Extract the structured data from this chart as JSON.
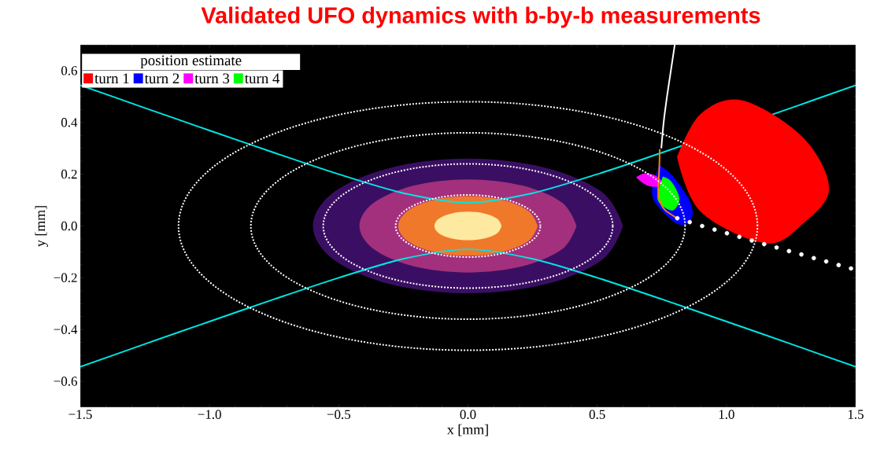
{
  "chart_data": {
    "type": "line",
    "title": "Validated UFO dynamics with b-by-b measurements",
    "xlabel": "x [mm]",
    "ylabel": "y [mm]",
    "legend_title": "position estimate",
    "legend": "top left",
    "grid": false,
    "xlim": [
      -1.5,
      1.5
    ],
    "ylim": [
      -0.7,
      0.7
    ],
    "xticks": [
      {
        "value": -1.5,
        "label": "−1.5"
      },
      {
        "value": -1.0,
        "label": "−1.0"
      },
      {
        "value": -0.5,
        "label": "−0.5"
      },
      {
        "value": 0.0,
        "label": "0.0"
      },
      {
        "value": 0.5,
        "label": "0.5"
      },
      {
        "value": 1.0,
        "label": "1.0"
      },
      {
        "value": 1.5,
        "label": "1.5"
      }
    ],
    "yticks": [
      {
        "value": -0.6,
        "label": "−0.6"
      },
      {
        "value": -0.4,
        "label": "−0.4"
      },
      {
        "value": -0.2,
        "label": "−0.2"
      },
      {
        "value": 0.0,
        "label": "0.0"
      },
      {
        "value": 0.2,
        "label": "0.2"
      },
      {
        "value": 0.4,
        "label": "0.4"
      },
      {
        "value": 0.6,
        "label": "0.6"
      }
    ],
    "series": [
      {
        "type": "area",
        "color": "#3a0f63",
        "x": [
          0.6,
          0.52,
          0.3,
          0,
          -0.3,
          -0.52,
          -0.6,
          -0.52,
          -0.3,
          0,
          0.3,
          0.52,
          0.6
        ],
        "values": [
          0,
          0.13,
          0.225,
          0.26,
          0.225,
          0.13,
          0,
          -0.13,
          -0.225,
          -0.26,
          -0.225,
          -0.13,
          0
        ]
      },
      {
        "type": "area",
        "color": "#a3307c",
        "x": [
          0.42,
          0.364,
          0.21,
          0,
          -0.21,
          -0.364,
          -0.42,
          -0.364,
          -0.21,
          0,
          0.21,
          0.364,
          0.42
        ],
        "values": [
          0,
          0.09,
          0.156,
          0.18,
          0.156,
          0.09,
          0,
          -0.09,
          -0.156,
          -0.18,
          -0.156,
          -0.09,
          0
        ]
      },
      {
        "type": "area",
        "color": "#f0782a",
        "x": [
          0.27,
          0.234,
          0.135,
          0,
          -0.135,
          -0.234,
          -0.27,
          -0.234,
          -0.135,
          0,
          0.135,
          0.234,
          0.27
        ],
        "values": [
          0,
          0.058,
          0.1,
          0.115,
          0.1,
          0.058,
          0,
          -0.058,
          -0.1,
          -0.115,
          -0.1,
          -0.058,
          0
        ]
      },
      {
        "type": "area",
        "color": "#fde9a0",
        "x": [
          0.13,
          0.113,
          0.065,
          0,
          -0.065,
          -0.113,
          -0.13,
          -0.113,
          -0.065,
          0,
          0.065,
          0.113,
          0.13
        ],
        "values": [
          0,
          0.028,
          0.048,
          0.055,
          0.048,
          0.028,
          0,
          -0.028,
          -0.048,
          -0.055,
          -0.048,
          -0.028,
          0
        ]
      },
      {
        "line_style": "solid",
        "color": "#00e5e5",
        "x": [
          -1.5,
          -1.25,
          -1,
          -0.75,
          -0.5,
          -0.25,
          0,
          0.25,
          0.5,
          0.75,
          1,
          1.25,
          1.5
        ],
        "values": [
          0.544,
          0.456,
          0.369,
          0.283,
          0.2,
          0.127,
          0.09,
          0.127,
          0.2,
          0.283,
          null,
          0.456,
          0.544
        ]
      },
      {
        "line_style": "solid",
        "color": "#00e5e5",
        "x": [
          -1.5,
          -1.25,
          -1,
          -0.75,
          -0.5,
          -0.25,
          0,
          0.25,
          0.5,
          0.75,
          1,
          1.25,
          1.5
        ],
        "values": [
          -0.544,
          -0.456,
          -0.369,
          -0.283,
          -0.2,
          -0.127,
          -0.09,
          -0.127,
          -0.2,
          -0.283,
          -0.369,
          -0.456,
          -0.544
        ]
      },
      {
        "type": "area",
        "name": "turn 1",
        "color": "#ff0000",
        "x": [
          0.809,
          0.9,
          1.062,
          1.296,
          1.397,
          1.296,
          1.152,
          0.9,
          0.809
        ],
        "values": [
          0.267,
          0.433,
          0.485,
          0.342,
          0.145,
          0.009,
          -0.067,
          0.055,
          0.267
        ]
      },
      {
        "type": "area",
        "name": "turn 2",
        "color": "#0000ff",
        "x": [
          0.739,
          0.794,
          0.863,
          0.86,
          0.809,
          0.733,
          0.712,
          0.739
        ],
        "values": [
          0.236,
          0.191,
          0.085,
          0.018,
          0.009,
          0.079,
          0.135,
          0.236
        ]
      },
      {
        "type": "area",
        "name": "turn 3",
        "color": "#ff00ff",
        "x": [
          0.65,
          0.68,
          0.72,
          0.754,
          0.735,
          0.69,
          0.65
        ],
        "values": [
          0.188,
          0.203,
          0.197,
          0.167,
          0.152,
          0.158,
          0.188
        ]
      },
      {
        "type": "area",
        "name": "turn 4",
        "color": "#00ff00",
        "x": [
          0.754,
          0.788,
          0.818,
          0.794,
          0.75,
          0.733,
          0.754
        ],
        "values": [
          0.191,
          0.17,
          0.106,
          0.061,
          0.08,
          0.115,
          0.191
        ]
      },
      {
        "line_style": "solid",
        "color": "#ffffff",
        "x": [
          0.8,
          0.785,
          0.77,
          0.757,
          0.748
        ],
        "values": [
          0.7,
          0.6,
          0.5,
          0.4,
          0.3
        ]
      },
      {
        "line_style": "solid",
        "color": "#ff8000",
        "x": [
          0.742,
          0.74,
          0.736,
          0.745,
          0.763,
          0.809
        ],
        "values": [
          0.297,
          0.22,
          0.13,
          0.09,
          0.061,
          0.03
        ]
      },
      {
        "type": "scatter",
        "marker": "circle",
        "color": "#ffffff",
        "x": [
          0.81,
          0.858,
          0.906,
          0.954,
          1.002,
          1.05,
          1.098,
          1.146,
          1.194,
          1.242,
          1.29,
          1.338,
          1.386,
          1.434,
          1.482
        ],
        "values": [
          0.03,
          0.015,
          0.0,
          -0.014,
          -0.028,
          -0.042,
          -0.056,
          -0.07,
          -0.083,
          -0.097,
          -0.11,
          -0.124,
          -0.137,
          -0.151,
          -0.164
        ]
      }
    ]
  }
}
